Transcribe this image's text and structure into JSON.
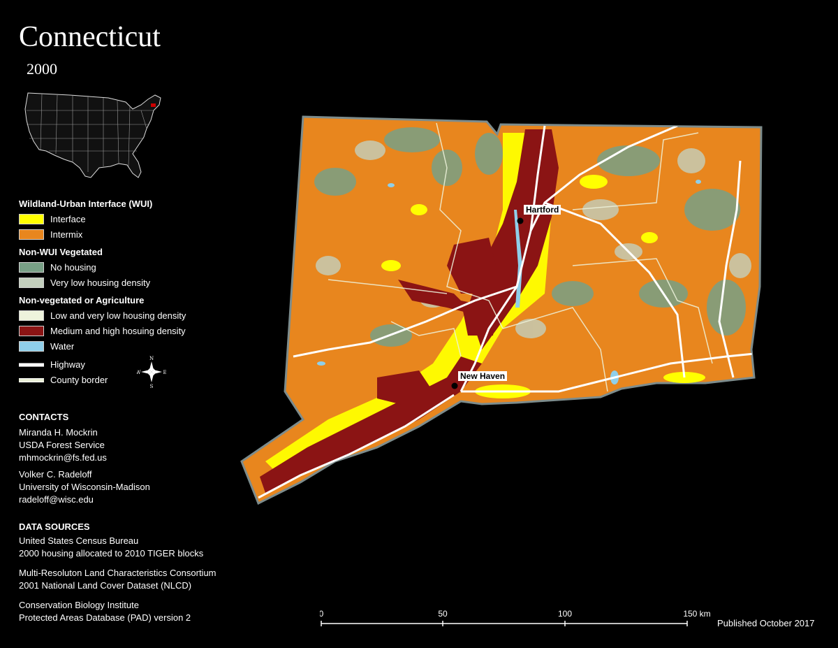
{
  "header": {
    "title": "Connecticut",
    "year": "2000"
  },
  "legend": {
    "wui_heading": "Wildland-Urban Interface (WUI)",
    "wui_items": [
      {
        "label": "Interface",
        "color": "#ffff00"
      },
      {
        "label": "Intermix",
        "color": "#e8861e"
      }
    ],
    "nonwui_heading": "Non-WUI Vegetated",
    "nonwui_items": [
      {
        "label": "No housing",
        "color": "#78a086"
      },
      {
        "label": "Very low housing density",
        "color": "#c3cfbd"
      }
    ],
    "nonveg_heading": "Non-vegetated or Agriculture",
    "nonveg_items": [
      {
        "label": "Low and very low housing density",
        "color": "#eef3dc"
      },
      {
        "label": "Medium and high hosuing density",
        "color": "#8b1414"
      },
      {
        "label": "Water",
        "color": "#8fcfea"
      }
    ],
    "line_items": [
      {
        "label": "Highway",
        "icon": "highway-line"
      },
      {
        "label": "County border",
        "icon": "county-border-line"
      }
    ]
  },
  "compass": {
    "n": "N",
    "s": "S",
    "e": "E",
    "w": "W"
  },
  "contacts": {
    "heading": "CONTACTS",
    "people": [
      {
        "name": "Miranda H. Mockrin",
        "org": "USDA Forest Service",
        "email": "mhmockrin@fs.fed.us"
      },
      {
        "name": "Volker C. Radeloff",
        "org": "University of Wisconsin-Madison",
        "email": "radeloff@wisc.edu"
      }
    ]
  },
  "sources": {
    "heading": "DATA SOURCES",
    "items": [
      {
        "line1": "United States Census Bureau",
        "line2": "2000 housing allocated to 2010 TIGER blocks"
      },
      {
        "line1": "Multi-Resoluton Land Characteristics Consortium",
        "line2": "2001 National Land Cover Dataset (NLCD)"
      },
      {
        "line1": "Conservation Biology Institute",
        "line2": "Protected Areas Database (PAD) version 2"
      }
    ]
  },
  "map": {
    "cities": [
      {
        "name": "Hartford"
      },
      {
        "name": "New Haven"
      }
    ],
    "inset_highlight_color": "#cc0000"
  },
  "scale": {
    "ticks": [
      "0",
      "50",
      "100",
      "150 km"
    ]
  },
  "footer": {
    "published": "Published October 2017"
  }
}
